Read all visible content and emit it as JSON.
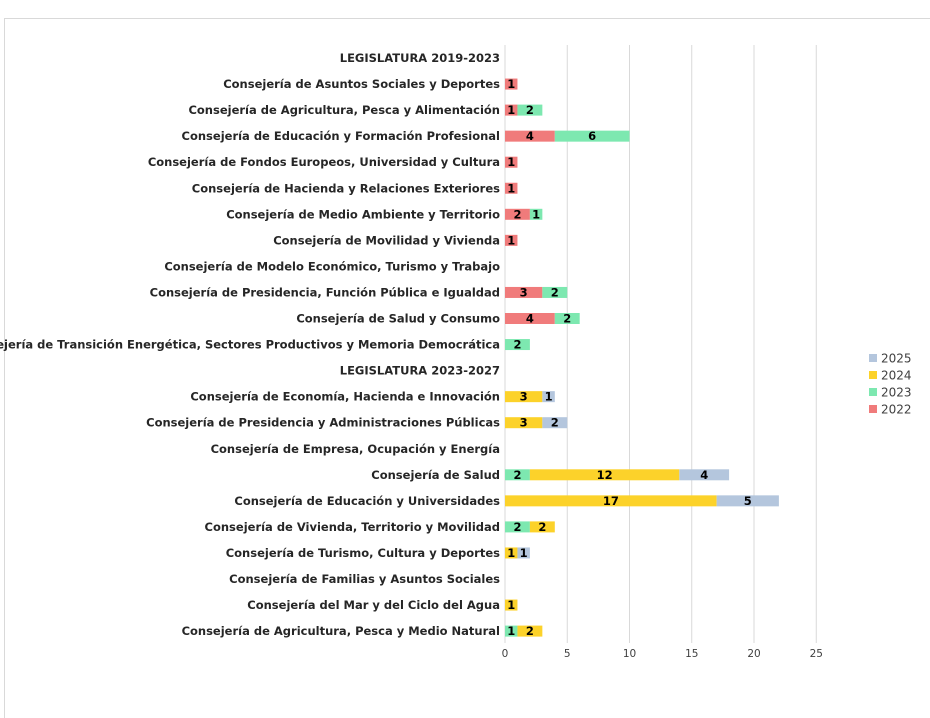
{
  "chart_data": {
    "type": "bar",
    "orientation": "horizontal",
    "stacked": true,
    "title": "",
    "xlabel": "",
    "ylabel": "",
    "xlim": [
      0,
      25
    ],
    "xticks": [
      0,
      5,
      10,
      15,
      20,
      25
    ],
    "grid": "vertical",
    "legend_position": "right",
    "categories": [
      "LEGISLATURA 2019-2023",
      "Consejería de Asuntos Sociales y Deportes",
      "Consejería de Agricultura, Pesca y Alimentación",
      "Consejería de Educación y Formación Profesional",
      "Consejería de Fondos Europeos, Universidad y Cultura",
      "Consejería de Hacienda y Relaciones Exteriores",
      "Consejería de  Medio Ambiente y Territorio",
      "Consejería de  Movilidad y Vivienda",
      "Consejería de  Modelo Económico, Turismo y Trabajo",
      "Consejería de Presidencia, Función Pública e Igualdad",
      "Consejería de Salud y Consumo",
      "Consejería de Transición Energética, Sectores Productivos y Memoria Democrática",
      "LEGISLATURA 2023-2027",
      "Consejería de Economía, Hacienda e Innovación",
      "Consejería de Presidencia y Administraciones Públicas",
      "Consejería de Empresa, Ocupación y  Energía",
      "Consejería de Salud",
      "Consejería de Educación y Universidades",
      "Consejería de Vivienda, Territorio y Movilidad",
      "Consejería de Turismo, Cultura y Deportes",
      "Consejería de Familias y Asuntos Sociales",
      "Consejería del Mar y del Ciclo del Agua",
      "Consejería de Agricultura, Pesca y Medio Natural"
    ],
    "series": [
      {
        "name": "2022",
        "color": "#f07b7b",
        "values": [
          0,
          1,
          1,
          4,
          1,
          1,
          2,
          1,
          0,
          3,
          4,
          0,
          0,
          0,
          0,
          0,
          0,
          0,
          0,
          0,
          0,
          0,
          0
        ]
      },
      {
        "name": "2023",
        "color": "#7de8b0",
        "values": [
          0,
          0,
          2,
          6,
          0,
          0,
          1,
          0,
          0,
          2,
          2,
          2,
          0,
          0,
          0,
          0,
          2,
          0,
          2,
          0,
          0,
          0,
          1
        ]
      },
      {
        "name": "2024",
        "color": "#fcd22a",
        "values": [
          0,
          0,
          0,
          0,
          0,
          0,
          0,
          0,
          0,
          0,
          0,
          0,
          0,
          3,
          3,
          0,
          12,
          17,
          2,
          1,
          0,
          1,
          2
        ]
      },
      {
        "name": "2025",
        "color": "#b4c6dd",
        "values": [
          0,
          0,
          0,
          0,
          0,
          0,
          0,
          0,
          0,
          0,
          0,
          0,
          0,
          1,
          2,
          0,
          4,
          5,
          0,
          1,
          0,
          0,
          0
        ]
      }
    ],
    "legend_order": [
      "2025",
      "2024",
      "2023",
      "2022"
    ]
  }
}
